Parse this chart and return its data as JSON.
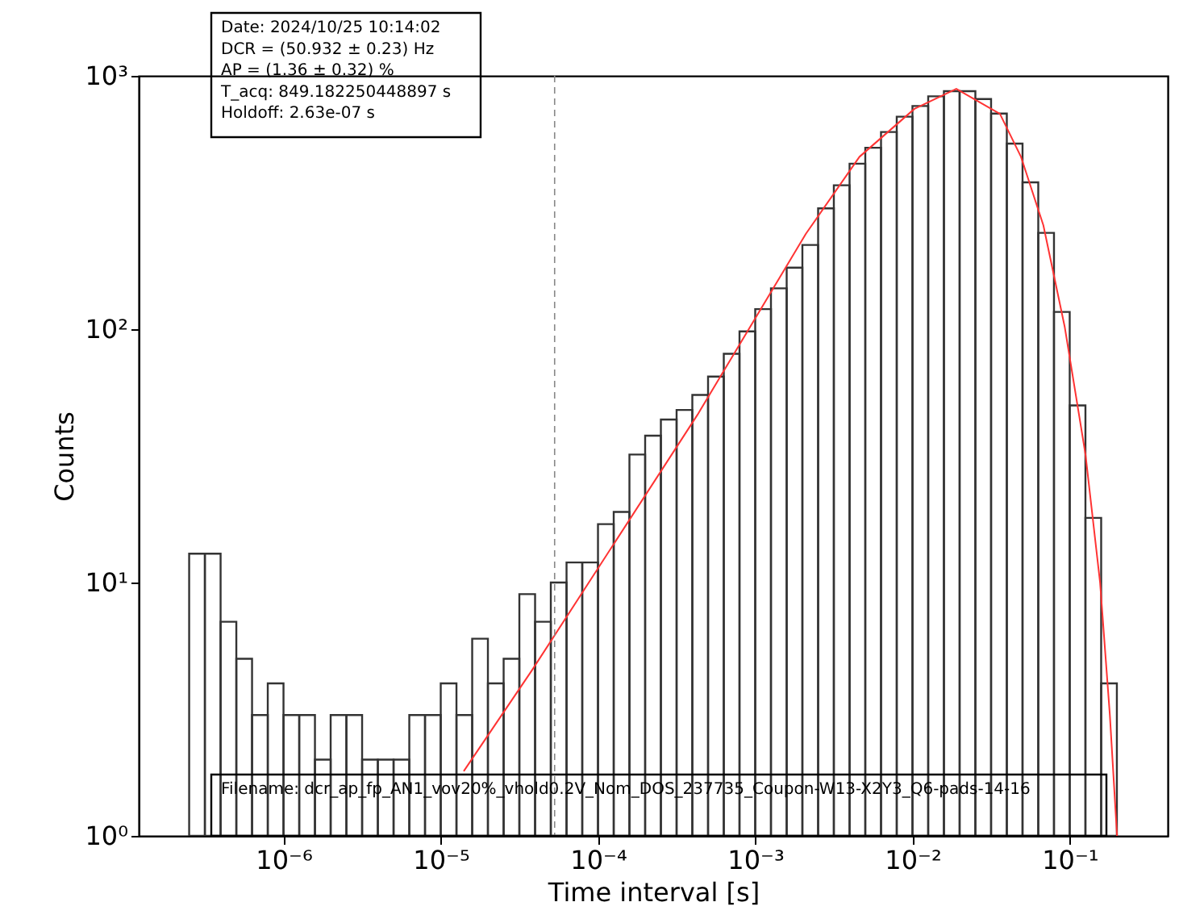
{
  "chart_data": {
    "type": "histogram",
    "xlabel": "Time interval [s]",
    "ylabel": "Counts",
    "log": "xy",
    "xlim": [
      1.2e-07,
      0.42
    ],
    "ylim": [
      1,
      1000
    ],
    "xticks": [
      {
        "value": 1e-06,
        "label": "10⁻⁶"
      },
      {
        "value": 1e-05,
        "label": "10⁻⁵"
      },
      {
        "value": 0.0001,
        "label": "10⁻⁴"
      },
      {
        "value": 0.001,
        "label": "10⁻³"
      },
      {
        "value": 0.01,
        "label": "10⁻²"
      },
      {
        "value": 0.1,
        "label": "10⁻¹"
      }
    ],
    "yticks": [
      {
        "value": 1,
        "label": "10⁰"
      },
      {
        "value": 10,
        "label": "10¹"
      },
      {
        "value": 100,
        "label": "10²"
      },
      {
        "value": 1000,
        "label": "10³"
      }
    ],
    "series": [
      {
        "type": "histogram",
        "color": "#333333",
        "bins": [
          2.512e-07,
          3.162e-07,
          3.981e-07,
          5.012e-07,
          6.31e-07,
          7.943e-07,
          1e-06,
          1.259e-06,
          1.585e-06,
          1.995e-06,
          2.512e-06,
          3.162e-06,
          3.981e-06,
          5.012e-06,
          6.31e-06,
          7.943e-06,
          1e-05,
          1.259e-05,
          1.585e-05,
          1.995e-05,
          2.512e-05,
          3.162e-05,
          3.981e-05,
          5.012e-05,
          6.31e-05,
          7.943e-05,
          0.0001,
          0.0001259,
          0.0001585,
          0.0001995,
          0.0002512,
          0.0003162,
          0.0003981,
          0.0005012,
          0.000631,
          0.0007943,
          0.001,
          0.001259,
          0.001585,
          0.001995,
          0.002512,
          0.003162,
          0.003981,
          0.005012,
          0.00631,
          0.007943,
          0.01,
          0.01259,
          0.01585,
          0.01995,
          0.02512,
          0.03162,
          0.03981,
          0.05012,
          0.0631,
          0.07943,
          0.1,
          0.1259,
          0.1585,
          0.1995
        ],
        "values": [
          13,
          13,
          7,
          5,
          3,
          4,
          3,
          3,
          2,
          3,
          3,
          2,
          2,
          2,
          3,
          3,
          4,
          3,
          6,
          4,
          5,
          9,
          7,
          10,
          12,
          12,
          17,
          19,
          32,
          38,
          44,
          48,
          55,
          65,
          80,
          98,
          120,
          145,
          175,
          215,
          300,
          370,
          450,
          520,
          600,
          690,
          760,
          830,
          870,
          870,
          810,
          710,
          540,
          380,
          240,
          117,
          50,
          18,
          4
        ]
      },
      {
        "type": "line",
        "color": "#ff3333",
        "x": [
          1.4e-05,
          3.8e-05,
          0.00043,
          0.0021,
          0.0046,
          0.0103,
          0.019,
          0.036,
          0.049,
          0.068,
          0.093,
          0.126,
          0.156,
          0.18,
          0.2
        ],
        "values": [
          1.8,
          4.5,
          46,
          238,
          479,
          741,
          889,
          708,
          479,
          257,
          102,
          32,
          10,
          3,
          1
        ]
      }
    ],
    "ref_lines": [
      {
        "axis": "x",
        "value": 5.3e-05,
        "color": "#888888",
        "line_style": "dashed"
      }
    ],
    "annotations": [
      "Date: 2024/10/25 10:14:02\nDCR = (50.932 ± 0.23) Hz\nAP = (1.36 ± 0.32) %\nT_acq: 849.182250448897 s\nHoldoff: 2.63e-07 s",
      "Filename: dcr_ap_fp_AN1_vov20%_vhold0.2V_Nom_DOS_237735_Coupon-W13-X2Y3_Q6-pads-14-16"
    ]
  }
}
